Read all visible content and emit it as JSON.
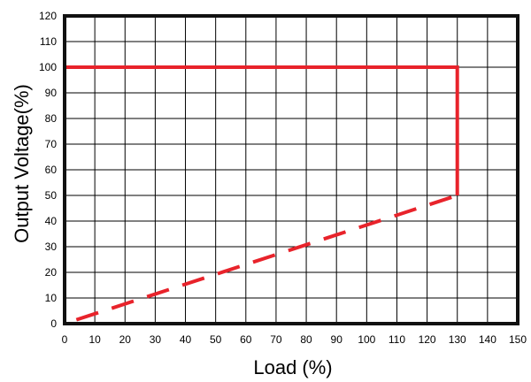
{
  "chart_data": {
    "type": "line",
    "title": "",
    "xlabel": "Load (%)",
    "ylabel": "Output Voltage(%)",
    "xlim": [
      0,
      150
    ],
    "ylim": [
      0,
      120
    ],
    "x_ticks": [
      0,
      10,
      20,
      30,
      40,
      50,
      60,
      70,
      80,
      90,
      100,
      110,
      120,
      130,
      140,
      150
    ],
    "y_ticks": [
      0,
      10,
      20,
      30,
      40,
      50,
      60,
      70,
      80,
      90,
      100,
      110,
      120
    ],
    "grid": true,
    "series": [
      {
        "style": "solid",
        "color": "#e8232b",
        "points": [
          [
            0,
            100
          ],
          [
            130,
            100
          ],
          [
            130,
            50
          ]
        ]
      },
      {
        "style": "dashed",
        "color": "#e8232b",
        "points": [
          [
            0,
            0
          ],
          [
            130,
            50
          ]
        ]
      }
    ]
  },
  "colors": {
    "grid": "#000000",
    "frame": "#111111",
    "series": "#e8232b"
  }
}
